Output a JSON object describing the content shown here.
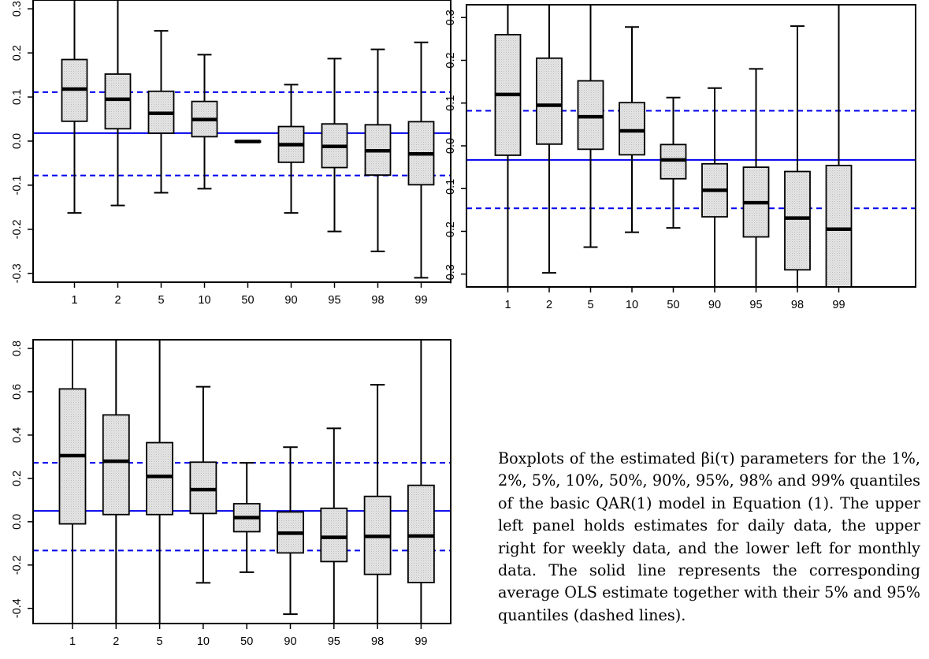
{
  "chart_data": [
    {
      "type": "boxplot",
      "categories": [
        "1",
        "2",
        "5",
        "10",
        "50",
        "90",
        "95",
        "98",
        "99"
      ],
      "ylim": [
        -0.32,
        0.32
      ],
      "yticks": [
        -0.3,
        -0.2,
        -0.1,
        0.0,
        0.1,
        0.2,
        0.3
      ],
      "ytick_labels": [
        "-0.3",
        "-0.2",
        "-0.1",
        "0.0",
        "0.1",
        "0.2",
        "0.3"
      ],
      "boxes": [
        {
          "low": -0.163,
          "q1": 0.045,
          "median": 0.118,
          "q3": 0.185,
          "high": 0.32
        },
        {
          "low": -0.146,
          "q1": 0.028,
          "median": 0.095,
          "q3": 0.152,
          "high": 0.32
        },
        {
          "low": -0.117,
          "q1": 0.018,
          "median": 0.063,
          "q3": 0.113,
          "high": 0.25
        },
        {
          "low": -0.108,
          "q1": 0.01,
          "median": 0.049,
          "q3": 0.09,
          "high": 0.196
        },
        {
          "low": -0.002,
          "q1": -0.002,
          "median": -0.001,
          "q3": 0.0,
          "high": 0.0
        },
        {
          "low": -0.163,
          "q1": -0.048,
          "median": -0.008,
          "q3": 0.033,
          "high": 0.128
        },
        {
          "low": -0.205,
          "q1": -0.06,
          "median": -0.012,
          "q3": 0.039,
          "high": 0.187
        },
        {
          "low": -0.25,
          "q1": -0.077,
          "median": -0.022,
          "q3": 0.037,
          "high": 0.208
        },
        {
          "low": -0.31,
          "q1": -0.099,
          "median": -0.029,
          "q3": 0.044,
          "high": 0.224
        }
      ],
      "ols_mean": 0.018,
      "ols_q05": -0.078,
      "ols_q95": 0.111
    },
    {
      "type": "boxplot",
      "categories": [
        "1",
        "2",
        "5",
        "10",
        "50",
        "90",
        "95",
        "98",
        "99"
      ],
      "ylim": [
        -0.33,
        0.33
      ],
      "yticks": [
        -0.3,
        -0.2,
        -0.1,
        0.0,
        0.1,
        0.2,
        0.3
      ],
      "ytick_labels": [
        "-0.3",
        "-0.2",
        "-0.1",
        "0.0",
        "0.1",
        "0.2",
        "0.3"
      ],
      "boxes": [
        {
          "low": -0.33,
          "q1": -0.022,
          "median": 0.12,
          "q3": 0.26,
          "high": 0.33
        },
        {
          "low": -0.297,
          "q1": 0.004,
          "median": 0.095,
          "q3": 0.205,
          "high": 0.33
        },
        {
          "low": -0.237,
          "q1": -0.008,
          "median": 0.068,
          "q3": 0.152,
          "high": 0.33
        },
        {
          "low": -0.202,
          "q1": -0.021,
          "median": 0.035,
          "q3": 0.101,
          "high": 0.278
        },
        {
          "low": -0.192,
          "q1": -0.077,
          "median": -0.033,
          "q3": 0.003,
          "high": 0.113
        },
        {
          "low": -0.33,
          "q1": -0.166,
          "median": -0.104,
          "q3": -0.042,
          "high": 0.135
        },
        {
          "low": -0.33,
          "q1": -0.213,
          "median": -0.133,
          "q3": -0.05,
          "high": 0.18
        },
        {
          "low": -0.33,
          "q1": -0.29,
          "median": -0.169,
          "q3": -0.06,
          "high": 0.28
        },
        {
          "low": -0.33,
          "q1": -0.33,
          "median": -0.195,
          "q3": -0.046,
          "high": 0.33
        }
      ],
      "ols_mean": -0.033,
      "ols_q05": -0.146,
      "ols_q95": 0.082
    },
    {
      "type": "boxplot",
      "categories": [
        "1",
        "2",
        "5",
        "10",
        "50",
        "90",
        "95",
        "98",
        "99"
      ],
      "ylim": [
        -0.47,
        0.84
      ],
      "yticks": [
        -0.4,
        -0.2,
        0.0,
        0.2,
        0.4,
        0.6,
        0.8
      ],
      "ytick_labels": [
        "-0.4",
        "-0.2",
        "0.0",
        "0.2",
        "0.4",
        "0.6",
        "0.8"
      ],
      "boxes": [
        {
          "low": -0.47,
          "q1": -0.01,
          "median": 0.305,
          "q3": 0.613,
          "high": 0.84
        },
        {
          "low": -0.47,
          "q1": 0.033,
          "median": 0.279,
          "q3": 0.493,
          "high": 0.84
        },
        {
          "low": -0.47,
          "q1": 0.033,
          "median": 0.209,
          "q3": 0.365,
          "high": 0.84
        },
        {
          "low": -0.282,
          "q1": 0.038,
          "median": 0.148,
          "q3": 0.275,
          "high": 0.623
        },
        {
          "low": -0.233,
          "q1": -0.046,
          "median": 0.019,
          "q3": 0.083,
          "high": 0.272
        },
        {
          "low": -0.427,
          "q1": -0.144,
          "median": -0.053,
          "q3": 0.045,
          "high": 0.344
        },
        {
          "low": -0.47,
          "q1": -0.184,
          "median": -0.072,
          "q3": 0.062,
          "high": 0.431
        },
        {
          "low": -0.47,
          "q1": -0.243,
          "median": -0.068,
          "q3": 0.117,
          "high": 0.632
        },
        {
          "low": -0.47,
          "q1": -0.281,
          "median": -0.066,
          "q3": 0.168,
          "high": 0.84
        }
      ],
      "ols_mean": 0.05,
      "ols_q05": -0.133,
      "ols_q95": 0.272
    }
  ],
  "caption": "Boxplots of the estimated βi(τ) parameters for the 1%, 2%, 5%, 10%, 50%, 90%, 95%, 98% and 99% quantiles of the basic QAR(1) model in Equation (1). The upper left panel holds estimates for daily data, the upper right for weekly data, and the lower left for monthly data. The solid line represents the corresponding average OLS estimate together with their 5% and 95% quantiles (dashed lines).",
  "colors": {
    "box_fill": "#e2e2e2",
    "ols_line": "#0000ee",
    "axis": "#000000"
  }
}
